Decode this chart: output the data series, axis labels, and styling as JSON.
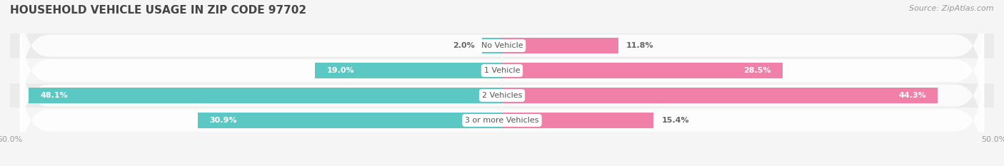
{
  "title": "HOUSEHOLD VEHICLE USAGE IN ZIP CODE 97702",
  "source": "Source: ZipAtlas.com",
  "categories": [
    "No Vehicle",
    "1 Vehicle",
    "2 Vehicles",
    "3 or more Vehicles"
  ],
  "owner_values": [
    2.0,
    19.0,
    48.1,
    30.9
  ],
  "renter_values": [
    11.8,
    28.5,
    44.3,
    15.4
  ],
  "owner_color": "#5BC8C4",
  "renter_color": "#F080A8",
  "x_min": -50.0,
  "x_max": 50.0,
  "x_tick_labels": [
    "50.0%",
    "50.0%"
  ],
  "title_fontsize": 11,
  "source_fontsize": 8,
  "label_fontsize": 8,
  "category_fontsize": 8,
  "bar_height": 0.62,
  "background_color": "#F5F5F5",
  "row_bg_colors": [
    "#EBEBEB",
    "#F5F5F5",
    "#EBEBEB",
    "#F5F5F5"
  ],
  "row_pill_color": "#E2E2E2"
}
